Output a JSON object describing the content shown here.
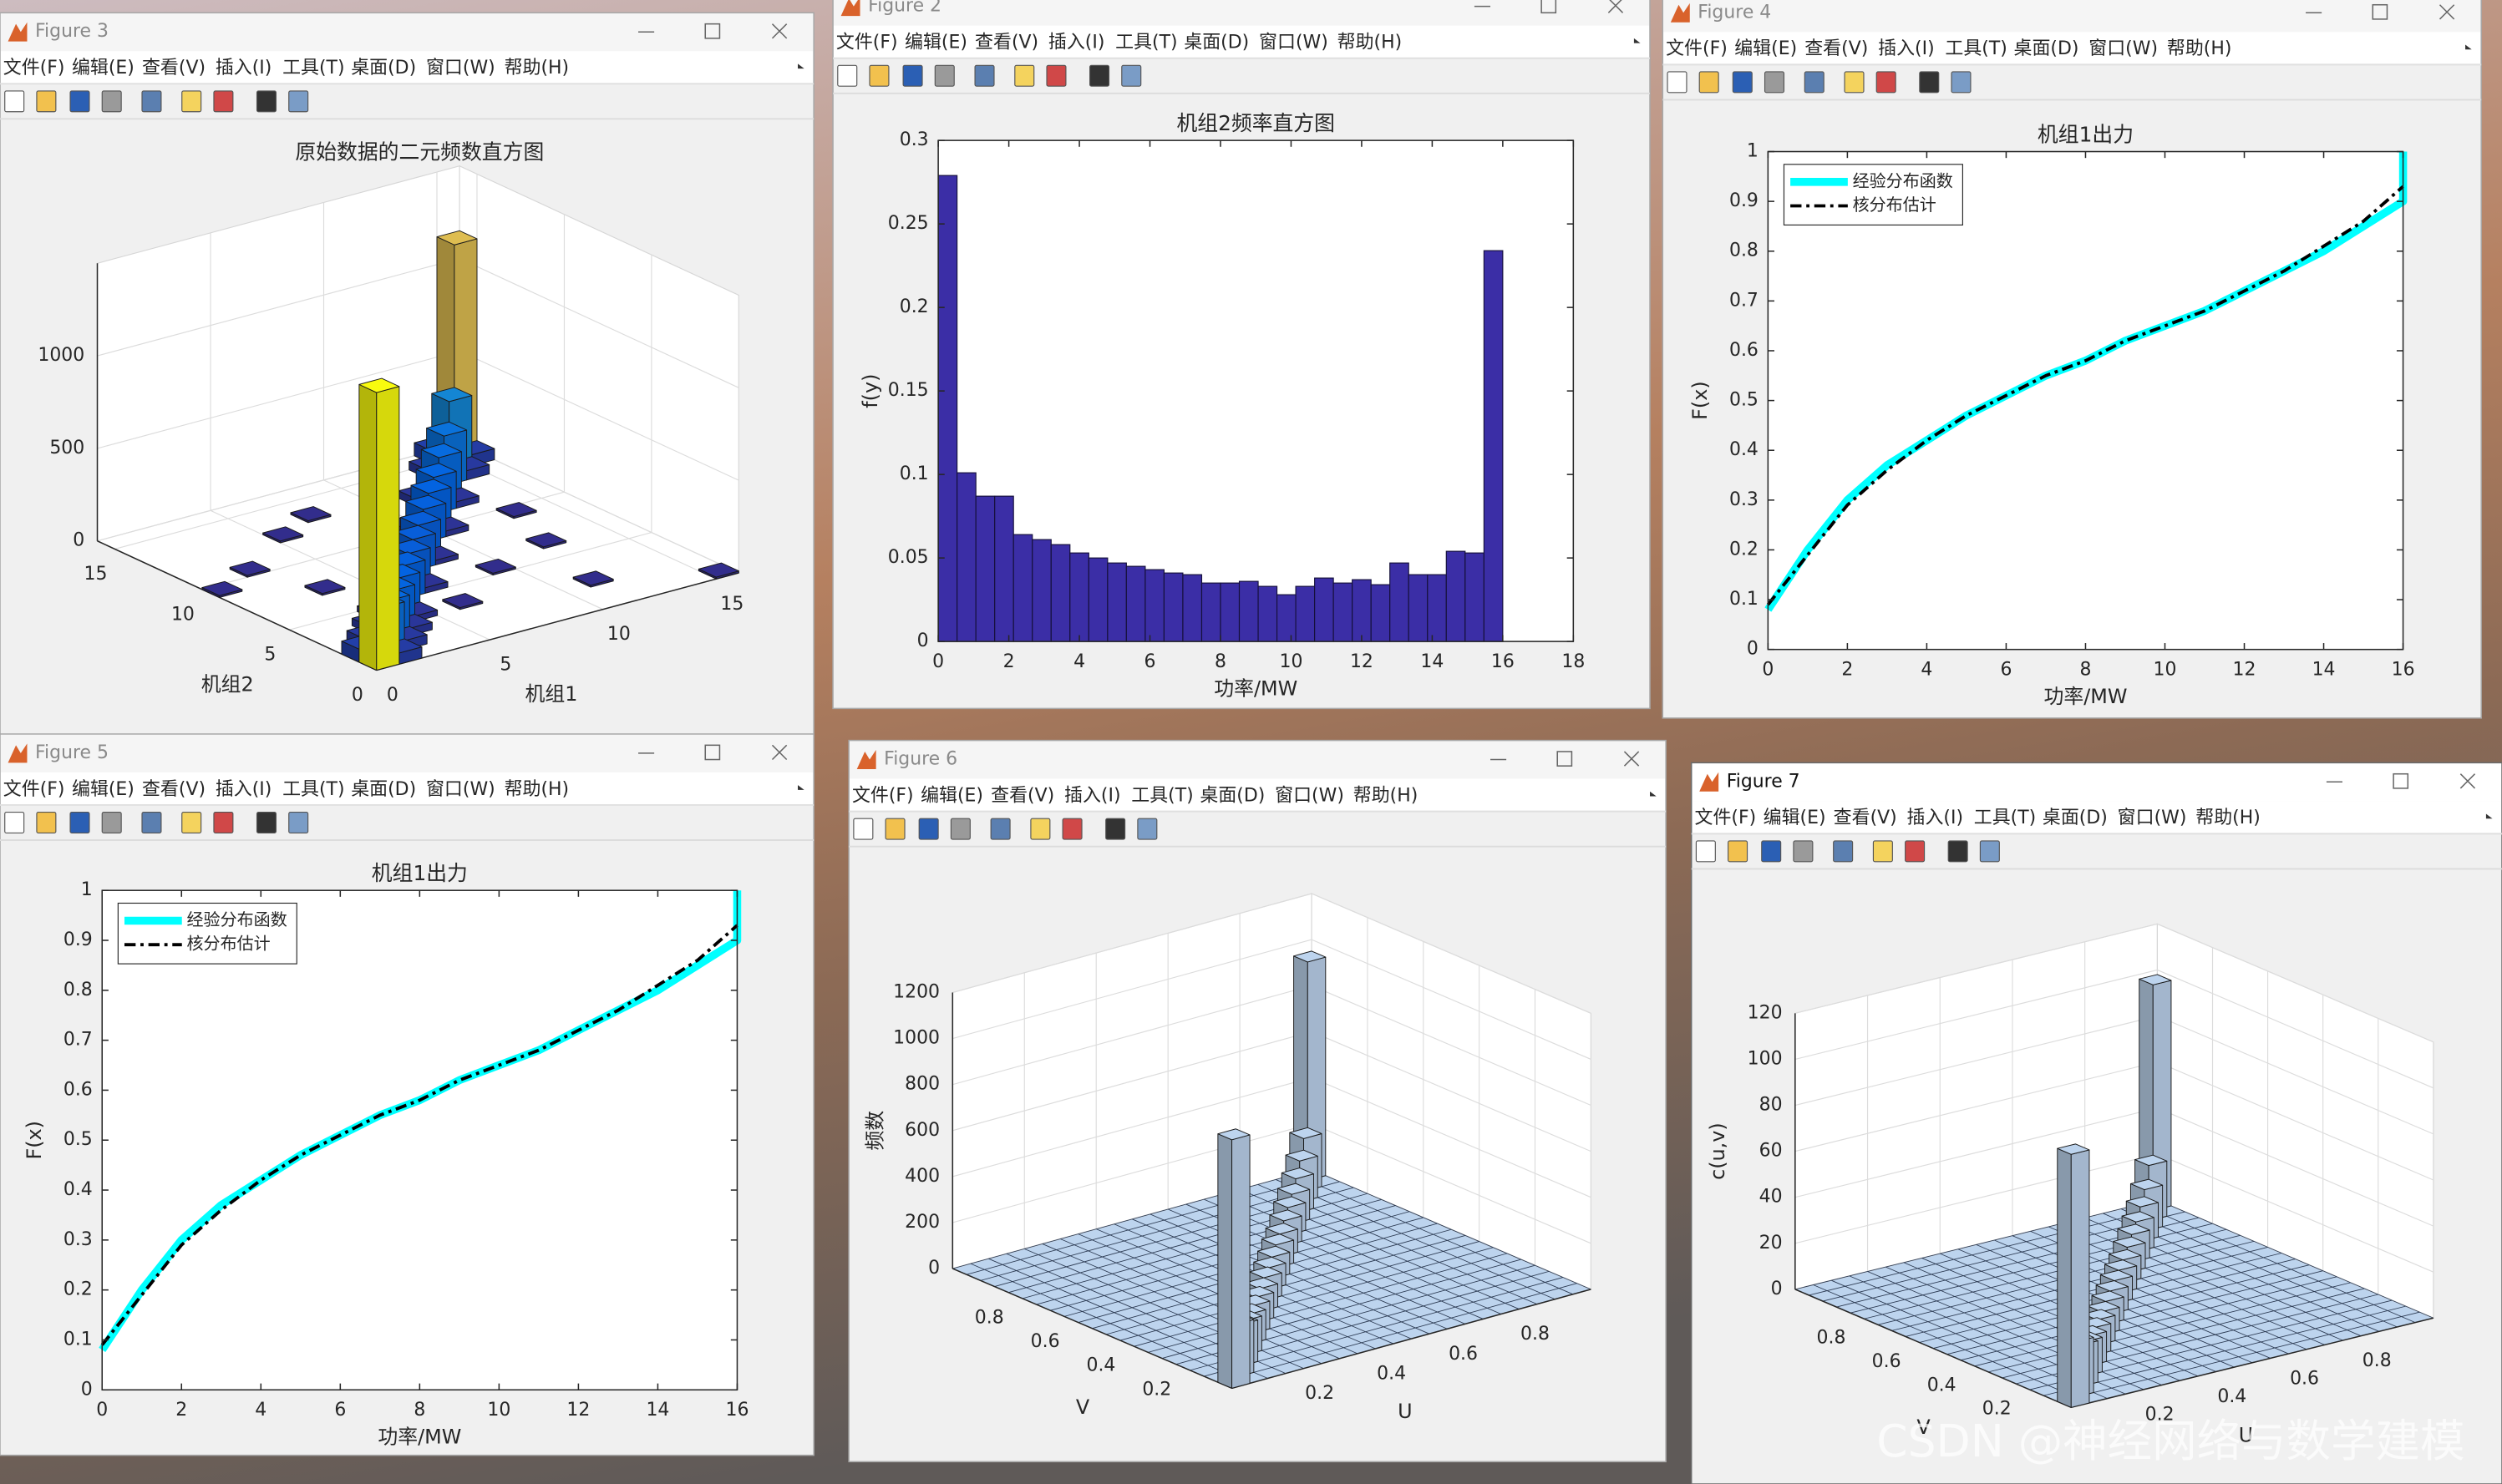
{
  "windows": [
    {
      "title": "Figure 3"
    },
    {
      "title": "Figure 2"
    },
    {
      "title": "Figure 4"
    },
    {
      "title": "Figure 5"
    },
    {
      "title": "Figure 6"
    },
    {
      "title": "Figure 7"
    }
  ],
  "menu": [
    "文件(F)",
    "编辑(E)",
    "查看(V)",
    "插入(I)",
    "工具(T)",
    "桌面(D)",
    "窗口(W)",
    "帮助(H)"
  ],
  "watermark": "CSDN @神经网络与数学建模",
  "chart_data": [
    {
      "type": "bar3d",
      "title": "原始数据的二元频数直方图",
      "xlabel": "机组1",
      "ylabel": "机组2",
      "xlim": [
        0,
        16
      ],
      "ylim": [
        0,
        16
      ],
      "zlim": [
        0,
        1500
      ],
      "xticks": [
        0,
        5,
        10,
        15
      ],
      "yticks": [
        0,
        5,
        10,
        15
      ],
      "zticks": [
        0,
        500,
        1000
      ],
      "xbins": [
        0,
        1,
        2,
        3,
        4,
        5,
        6,
        7,
        8,
        9,
        10,
        11,
        12,
        13,
        14,
        15,
        16
      ],
      "ybins": [
        0,
        1,
        2,
        3,
        4,
        5,
        6,
        7,
        8,
        9,
        10,
        11,
        12,
        13,
        14,
        15,
        16
      ],
      "colormap": "parula",
      "grid": true,
      "mesh": false,
      "bars": {
        "x": [
          0,
          1,
          2,
          3,
          4,
          5,
          6,
          7,
          8,
          9,
          10,
          11,
          12,
          13,
          14,
          15,
          1,
          0,
          2,
          1,
          3,
          2,
          4,
          3,
          6,
          5,
          8,
          7,
          10,
          9,
          12,
          11,
          14,
          13,
          15,
          14,
          6,
          3,
          9,
          11,
          2,
          12,
          15,
          0,
          7,
          13,
          5
        ],
        "y": [
          0,
          1,
          2,
          3,
          4,
          5,
          6,
          7,
          8,
          9,
          10,
          11,
          12,
          13,
          14,
          15,
          0,
          1,
          1,
          2,
          2,
          3,
          3,
          4,
          5,
          6,
          7,
          8,
          9,
          10,
          11,
          12,
          13,
          14,
          14,
          15,
          3,
          7,
          5,
          2,
          10,
          6,
          0,
          9,
          13,
          9,
          12
        ],
        "values": [
          1500,
          260,
          220,
          200,
          190,
          180,
          170,
          170,
          170,
          180,
          190,
          200,
          230,
          270,
          380,
          1150,
          60,
          70,
          50,
          50,
          40,
          40,
          30,
          30,
          30,
          25,
          25,
          25,
          30,
          30,
          35,
          40,
          50,
          45,
          60,
          70,
          10,
          10,
          10,
          10,
          10,
          10,
          10,
          10,
          10,
          10,
          10
        ]
      }
    },
    {
      "type": "histogram",
      "title": "机组2频率直方图",
      "xlabel": "功率/MW",
      "ylabel": "f(y)",
      "bins": [
        0,
        0.533,
        1.067,
        1.6,
        2.133,
        2.667,
        3.2,
        3.733,
        4.267,
        4.8,
        5.333,
        5.867,
        6.4,
        6.933,
        7.467,
        8,
        8.533,
        9.067,
        9.6,
        10.133,
        10.667,
        11.2,
        11.733,
        12.267,
        12.8,
        13.333,
        13.867,
        14.4,
        14.933,
        15.467,
        16
      ],
      "values": [
        0.279,
        0.101,
        0.087,
        0.087,
        0.064,
        0.061,
        0.058,
        0.053,
        0.05,
        0.047,
        0.045,
        0.043,
        0.041,
        0.04,
        0.035,
        0.035,
        0.036,
        0.033,
        0.028,
        0.033,
        0.038,
        0.035,
        0.037,
        0.034,
        0.047,
        0.04,
        0.04,
        0.054,
        0.053,
        0.234
      ],
      "color": "#3b2ea6",
      "xlim": [
        0,
        18
      ],
      "ylim": [
        0,
        0.3
      ],
      "xticks": [
        0,
        2,
        4,
        6,
        8,
        10,
        12,
        14,
        16,
        18
      ],
      "yticks": [
        0,
        0.05,
        0.1,
        0.15,
        0.2,
        0.25,
        0.3
      ]
    },
    {
      "type": "line",
      "title": "机组1出力",
      "xlabel": "功率/MW",
      "ylabel": "F(x)",
      "x": [
        0,
        1,
        2,
        3,
        4,
        5,
        6,
        7,
        8,
        9,
        10,
        11,
        12,
        13,
        14,
        15,
        16,
        16
      ],
      "series": [
        {
          "name": "经验分布函数",
          "color": "#00ffff",
          "linestyle": "-",
          "linewidth": 5,
          "values": [
            0.08,
            0.2,
            0.3,
            0.37,
            0.42,
            0.47,
            0.51,
            0.55,
            0.58,
            0.62,
            0.65,
            0.68,
            0.72,
            0.76,
            0.8,
            0.85,
            0.9,
            1
          ]
        },
        {
          "name": "核分布估计",
          "color": "#000000",
          "linestyle": "-.",
          "linewidth": 2,
          "values": [
            0.09,
            0.19,
            0.29,
            0.36,
            0.42,
            0.47,
            0.51,
            0.55,
            0.58,
            0.62,
            0.65,
            0.68,
            0.72,
            0.76,
            0.81,
            0.86,
            0.93,
            null
          ]
        }
      ],
      "xlim": [
        0,
        16
      ],
      "ylim": [
        0,
        1
      ],
      "xticks": [
        0,
        2,
        4,
        6,
        8,
        10,
        12,
        14,
        16
      ],
      "yticks": [
        0,
        0.1,
        0.2,
        0.3,
        0.4,
        0.5,
        0.6,
        0.7,
        0.8,
        0.9,
        1
      ],
      "legend": "northwest"
    },
    {
      "type": "line",
      "title": "机组1出力",
      "xlabel": "功率/MW",
      "ylabel": "F(x)",
      "x": [
        0,
        1,
        2,
        3,
        4,
        5,
        6,
        7,
        8,
        9,
        10,
        11,
        12,
        13,
        14,
        15,
        16,
        16
      ],
      "series": [
        {
          "name": "经验分布函数",
          "color": "#00ffff",
          "linestyle": "-",
          "linewidth": 5,
          "values": [
            0.08,
            0.2,
            0.3,
            0.37,
            0.42,
            0.47,
            0.51,
            0.55,
            0.58,
            0.62,
            0.65,
            0.68,
            0.72,
            0.76,
            0.8,
            0.85,
            0.9,
            1
          ]
        },
        {
          "name": "核分布估计",
          "color": "#000000",
          "linestyle": "-.",
          "linewidth": 2,
          "values": [
            0.09,
            0.19,
            0.29,
            0.36,
            0.42,
            0.47,
            0.51,
            0.55,
            0.58,
            0.62,
            0.65,
            0.68,
            0.72,
            0.76,
            0.81,
            0.86,
            0.93,
            null
          ]
        }
      ],
      "xlim": [
        0,
        16
      ],
      "ylim": [
        0,
        1
      ],
      "xticks": [
        0,
        2,
        4,
        6,
        8,
        10,
        12,
        14,
        16
      ],
      "yticks": [
        0,
        0.1,
        0.2,
        0.3,
        0.4,
        0.5,
        0.6,
        0.7,
        0.8,
        0.9,
        1
      ],
      "legend": "northwest"
    },
    {
      "type": "bar3d",
      "xlabel": "U",
      "ylabel": "V",
      "zlabel": "频数",
      "xlim": [
        0,
        1
      ],
      "ylim": [
        0,
        1
      ],
      "zlim": [
        0,
        1200
      ],
      "xticks": [
        0.2,
        0.4,
        0.6,
        0.8
      ],
      "yticks": [
        0.2,
        0.4,
        0.6,
        0.8
      ],
      "zticks": [
        0,
        200,
        400,
        600,
        800,
        1000,
        1200
      ],
      "xbins": [
        0,
        0.05,
        0.1,
        0.15,
        0.2,
        0.25,
        0.3,
        0.35,
        0.4,
        0.45,
        0.5,
        0.55,
        0.6,
        0.65,
        0.7,
        0.75,
        0.8,
        0.85,
        0.9,
        0.95,
        1
      ],
      "ybins": [
        0,
        0.05,
        0.1,
        0.15,
        0.2,
        0.25,
        0.3,
        0.35,
        0.4,
        0.45,
        0.5,
        0.55,
        0.6,
        0.65,
        0.7,
        0.75,
        0.8,
        0.85,
        0.9,
        0.95,
        1
      ],
      "color": "#bdd4ee",
      "grid": true,
      "mesh": true,
      "bars": {
        "x": [
          0,
          0.05,
          0.1,
          0.15,
          0.2,
          0.25,
          0.3,
          0.35,
          0.4,
          0.45,
          0.5,
          0.55,
          0.6,
          0.65,
          0.7,
          0.75,
          0.8,
          0.85,
          0.9,
          0.95
        ],
        "y": [
          0,
          0.05,
          0.1,
          0.15,
          0.2,
          0.25,
          0.3,
          0.35,
          0.4,
          0.45,
          0.5,
          0.55,
          0.6,
          0.65,
          0.7,
          0.75,
          0.8,
          0.85,
          0.9,
          0.95
        ],
        "values": [
          1080,
          230,
          180,
          150,
          130,
          120,
          110,
          100,
          100,
          95,
          95,
          100,
          100,
          110,
          120,
          130,
          150,
          180,
          230,
          950
        ]
      }
    },
    {
      "type": "bar3d",
      "xlabel": "U",
      "ylabel": "V",
      "zlabel": "c(u,v)",
      "xlim": [
        0,
        1
      ],
      "ylim": [
        0,
        1
      ],
      "zlim": [
        0,
        120
      ],
      "xticks": [
        0.2,
        0.4,
        0.6,
        0.8
      ],
      "yticks": [
        0.2,
        0.4,
        0.6,
        0.8
      ],
      "zticks": [
        0,
        20,
        40,
        60,
        80,
        100,
        120
      ],
      "xbins": [
        0,
        0.05,
        0.1,
        0.15,
        0.2,
        0.25,
        0.3,
        0.35,
        0.4,
        0.45,
        0.5,
        0.55,
        0.6,
        0.65,
        0.7,
        0.75,
        0.8,
        0.85,
        0.9,
        0.95,
        1
      ],
      "ybins": [
        0,
        0.05,
        0.1,
        0.15,
        0.2,
        0.25,
        0.3,
        0.35,
        0.4,
        0.45,
        0.5,
        0.55,
        0.6,
        0.65,
        0.7,
        0.75,
        0.8,
        0.85,
        0.9,
        0.95,
        1
      ],
      "color": "#bdd4ee",
      "grid": true,
      "mesh": true,
      "bars": {
        "x": [
          0,
          0.05,
          0.1,
          0.15,
          0.2,
          0.25,
          0.3,
          0.35,
          0.4,
          0.45,
          0.5,
          0.55,
          0.6,
          0.65,
          0.7,
          0.75,
          0.8,
          0.85,
          0.9,
          0.95
        ],
        "y": [
          0,
          0.05,
          0.1,
          0.15,
          0.2,
          0.25,
          0.3,
          0.35,
          0.4,
          0.45,
          0.5,
          0.55,
          0.6,
          0.65,
          0.7,
          0.75,
          0.8,
          0.85,
          0.9,
          0.95
        ],
        "values": [
          110,
          24,
          18,
          15,
          13,
          12,
          11,
          10,
          10,
          10,
          10,
          10,
          10,
          11,
          12,
          13,
          15,
          18,
          24,
          98
        ]
      }
    }
  ]
}
